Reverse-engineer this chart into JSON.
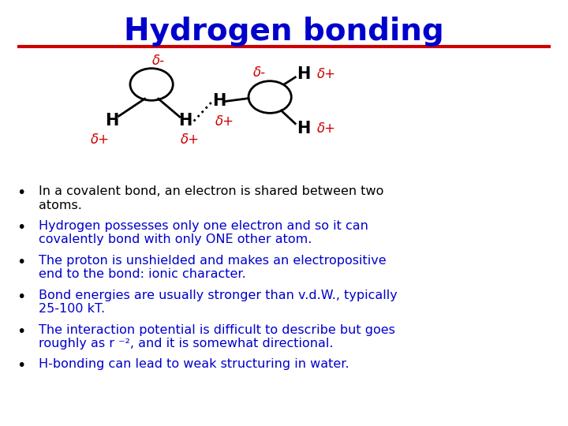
{
  "title": "Hydrogen bonding",
  "title_color": "#0000CC",
  "title_fontsize": 28,
  "line_color": "#CC0000",
  "bg_color": "#FFFFFF",
  "bullet_items": [
    {
      "text": "In a covalent bond, an electron is shared between two\natoms.",
      "color": "#000000"
    },
    {
      "text": "Hydrogen possesses only one electron and so it can\ncovalently bond with only ONE other atom.",
      "color": "#0000CC"
    },
    {
      "text": "The proton is unshielded and makes an electropositive\nend to the bond: ionic character.",
      "color": "#0000CC"
    },
    {
      "text": "Bond energies are usually stronger than v.d.W., typically\n25-100 kT.",
      "color": "#0000CC"
    },
    {
      "text": "The interaction potential is difficult to describe but goes\nroughly as r ⁻², and it is somewhat directional.",
      "color": "#0000CC"
    },
    {
      "text": "H-bonding can lead to weak structuring in water.",
      "color": "#0000CC"
    }
  ]
}
